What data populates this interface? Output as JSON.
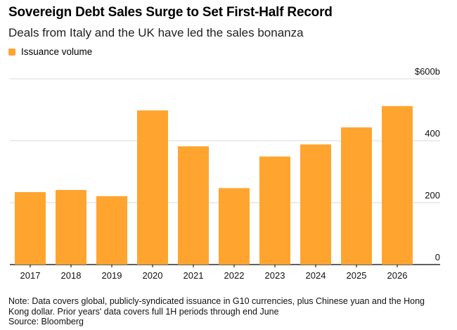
{
  "chart_data": {
    "type": "bar",
    "title": "Sovereign Debt Sales Surge to Set First-Half Record",
    "subtitle": "Deals from Italy and the UK have led the sales bonanza",
    "legend": [
      {
        "name": "Issuance volume",
        "color": "#ffa52f"
      }
    ],
    "categories": [
      "2017",
      "2018",
      "2019",
      "2020",
      "2021",
      "2022",
      "2023",
      "2024",
      "2025",
      "2026"
    ],
    "series": [
      {
        "name": "Issuance volume",
        "values": [
          234,
          241,
          221,
          498,
          382,
          247,
          349,
          388,
          443,
          512
        ]
      }
    ],
    "ylim": [
      0,
      600
    ],
    "yticks": [
      {
        "value": 0,
        "label": "0"
      },
      {
        "value": 200,
        "label": "200"
      },
      {
        "value": 400,
        "label": "400"
      },
      {
        "value": 600,
        "label": "$600b"
      }
    ],
    "grid": true,
    "legend_position": "top-left"
  },
  "notes": {
    "note": "Note: Data covers global, publicly-syndicated issuance in G10 currencies, plus Chinese yuan and the Hong Kong dollar. Prior years' data covers full 1H periods through end June",
    "source": "Source: Bloomberg"
  }
}
